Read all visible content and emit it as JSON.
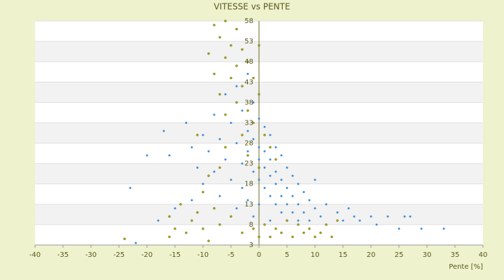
{
  "chart_data": {
    "type": "scatter",
    "title": "VITESSE vs PENTE",
    "x_label": "Pente [%]",
    "xlim": [
      -40,
      40
    ],
    "xticks": [
      -40,
      -35,
      -30,
      -25,
      -20,
      -15,
      -10,
      -5,
      0,
      5,
      10,
      15,
      20,
      25,
      30,
      35,
      40
    ],
    "ylim": [
      3,
      58
    ],
    "yticks": [
      3,
      8,
      13,
      18,
      23,
      28,
      33,
      38,
      43,
      48,
      53,
      58
    ],
    "grid": true,
    "series": [
      {
        "color": "#3a8ed8",
        "x": [
          -20,
          -17,
          -16,
          -13,
          -12,
          -11,
          -10,
          -10,
          -9,
          -8,
          -8,
          -7,
          -7,
          -6,
          -6,
          -5,
          -5,
          -4,
          -4,
          -4,
          -3,
          -3,
          -3,
          -2,
          -2,
          -2,
          -2,
          -1,
          -1,
          -1,
          -1,
          0,
          0,
          0,
          0,
          0,
          1,
          1,
          1,
          1,
          2,
          2,
          2,
          2,
          2,
          3,
          3,
          3,
          3,
          4,
          4,
          4,
          4,
          5,
          5,
          5,
          5,
          6,
          6,
          6,
          7,
          7,
          7,
          8,
          8,
          9,
          9,
          10,
          10,
          11,
          12,
          12,
          14,
          15,
          16,
          17,
          18,
          20,
          21,
          23,
          25,
          26,
          27,
          29,
          33,
          -23,
          -22,
          -18,
          -12,
          -15
        ],
        "values": [
          25,
          31,
          25,
          33,
          27,
          22,
          30,
          18,
          26,
          35,
          21,
          29,
          15,
          40,
          24,
          33,
          19,
          42,
          28,
          12,
          36,
          23,
          17,
          45,
          31,
          26,
          14,
          38,
          29,
          21,
          10,
          34,
          27,
          24,
          19,
          13,
          32,
          26,
          22,
          17,
          30,
          24,
          20,
          15,
          9,
          27,
          21,
          18,
          13,
          25,
          19,
          15,
          11,
          22,
          17,
          13,
          9,
          20,
          15,
          11,
          18,
          13,
          9,
          16,
          11,
          14,
          9,
          19,
          12,
          10,
          13,
          8,
          11,
          9,
          12,
          10,
          9,
          10,
          8,
          10,
          7,
          10,
          10,
          7,
          7,
          17,
          3.5,
          9,
          14,
          12
        ]
      },
      {
        "color": "#a6a600",
        "x": [
          -24,
          -16,
          -16,
          -15,
          -14,
          -13,
          -12,
          -11,
          -10,
          -10,
          -9,
          -9,
          -8,
          -8,
          -8,
          -7,
          -7,
          -7,
          -6,
          -6,
          -6,
          -5,
          -5,
          -5,
          -4,
          -4,
          -4,
          -3,
          -3,
          -3,
          -3,
          -2,
          -2,
          -2,
          -1,
          -1,
          -1,
          0,
          0,
          0,
          0,
          1,
          1,
          2,
          2,
          3,
          3,
          4,
          5,
          6,
          7,
          8,
          9,
          10,
          11,
          12,
          13,
          14,
          -9,
          -6,
          -11,
          -7
        ],
        "values": [
          4.5,
          5,
          10,
          7,
          13,
          6,
          9,
          11,
          7,
          16,
          4,
          50,
          57,
          45,
          12,
          54,
          40,
          8,
          58,
          49,
          35,
          52,
          44,
          10,
          56,
          47,
          38,
          51,
          42,
          30,
          6,
          48,
          36,
          25,
          44,
          33,
          7,
          52,
          40,
          22,
          5,
          30,
          8,
          27,
          5,
          24,
          7,
          6,
          9,
          5,
          8,
          6,
          7,
          5,
          6,
          8,
          5,
          9,
          20,
          27,
          30,
          22
        ]
      }
    ]
  }
}
